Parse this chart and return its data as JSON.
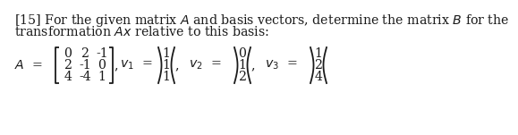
{
  "line1": "[15] For the given matrix $A$ and basis vectors, determine the matrix $B$ for the",
  "line2": "transformation $Ax$ relative to this basis:",
  "bg": "#ffffff",
  "tc": "#1a1a1a",
  "fs": 10.2,
  "A": [
    [
      "0",
      "2",
      "-1"
    ],
    [
      "2",
      "-1",
      "0"
    ],
    [
      "4",
      "-4",
      "1"
    ]
  ],
  "v1": [
    "1",
    "1",
    "1"
  ],
  "v2": [
    "0",
    "1",
    "2"
  ],
  "v3": [
    "1",
    "2",
    "4"
  ]
}
